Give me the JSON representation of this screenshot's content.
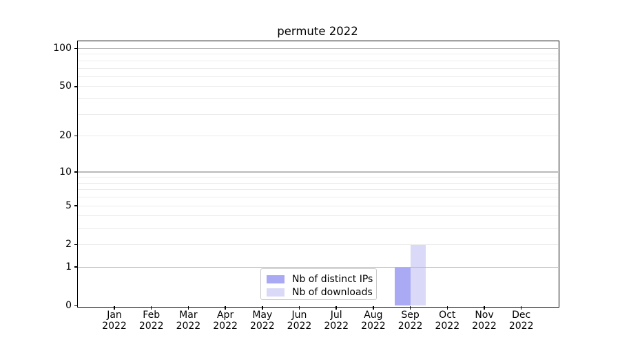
{
  "chart_data": {
    "type": "bar",
    "title": "permute 2022",
    "x_ticks": [
      {
        "line1": "Jan",
        "line2": "2022"
      },
      {
        "line1": "Feb",
        "line2": "2022"
      },
      {
        "line1": "Mar",
        "line2": "2022"
      },
      {
        "line1": "Apr",
        "line2": "2022"
      },
      {
        "line1": "May",
        "line2": "2022"
      },
      {
        "line1": "Jun",
        "line2": "2022"
      },
      {
        "line1": "Jul",
        "line2": "2022"
      },
      {
        "line1": "Aug",
        "line2": "2022"
      },
      {
        "line1": "Sep",
        "line2": "2022"
      },
      {
        "line1": "Oct",
        "line2": "2022"
      },
      {
        "line1": "Nov",
        "line2": "2022"
      },
      {
        "line1": "Dec",
        "line2": "2022"
      }
    ],
    "series": [
      {
        "name": "Nb of distinct IPs",
        "color": "#a9a9f4",
        "values": [
          0,
          0,
          0,
          0,
          0,
          0,
          0,
          0,
          1,
          0,
          0,
          0
        ]
      },
      {
        "name": "Nb of downloads",
        "color": "#dadaf8",
        "values": [
          0,
          0,
          0,
          0,
          0,
          0,
          0,
          0,
          2,
          0,
          0,
          0
        ]
      }
    ],
    "y_axis": {
      "scale": "log1p",
      "ylim": [
        0,
        116
      ],
      "tick_values": [
        0,
        1,
        2,
        5,
        10,
        20,
        50,
        100
      ],
      "tick_labels": [
        "0",
        "1",
        "2",
        "5",
        "10",
        "20",
        "50",
        "100"
      ],
      "major_grid_values": [
        1,
        10,
        100
      ],
      "minor_grid_values": [
        2,
        3,
        4,
        5,
        6,
        7,
        8,
        9,
        20,
        30,
        40,
        50,
        60,
        70,
        80,
        90
      ],
      "major_grid_color": "#b9b9b9",
      "minor_grid_color": "#ececec"
    },
    "legend": {
      "location": "lower center"
    },
    "axes_color": "#000000",
    "background_color": "#ffffff"
  }
}
